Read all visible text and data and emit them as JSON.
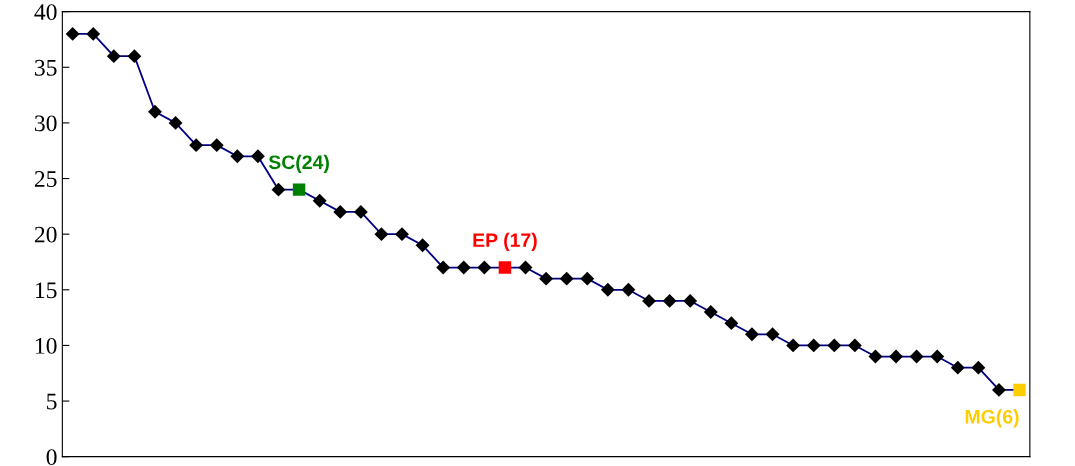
{
  "chart_data": {
    "type": "line",
    "categories": [
      null,
      null,
      null,
      null,
      null,
      null,
      null,
      null,
      null,
      null,
      null,
      null,
      null,
      null,
      null,
      null,
      null,
      null,
      null,
      null,
      null,
      null,
      null,
      null,
      null,
      null,
      null,
      null,
      null,
      null,
      null,
      null,
      null,
      null,
      null,
      null,
      null,
      null,
      null,
      null,
      null,
      null,
      null,
      null,
      null,
      null,
      null
    ],
    "series": [
      {
        "color": "#000080",
        "marker": "diamond",
        "values": [
          38,
          38,
          36,
          36,
          31,
          30,
          28,
          28,
          27,
          27,
          24,
          24,
          23,
          22,
          22,
          20,
          20,
          19,
          17,
          17,
          17,
          17,
          17,
          16,
          16,
          16,
          15,
          15,
          14,
          14,
          14,
          13,
          12,
          11,
          11,
          10,
          10,
          10,
          10,
          9,
          9,
          9,
          9,
          8,
          8,
          6,
          6
        ],
        "colors": [
          "#000000",
          "#000000",
          "#000000",
          "#000000",
          "#000000",
          "#000000",
          "#000000",
          "#000000",
          "#000000",
          "#000000",
          "#000000",
          "#008000",
          "#000000",
          "#000000",
          "#000000",
          "#000000",
          "#000000",
          "#000000",
          "#000000",
          "#000000",
          "#000000",
          "#ff0000",
          "#000000",
          "#000000",
          "#000000",
          "#000000",
          "#000000",
          "#000000",
          "#000000",
          "#000000",
          "#000000",
          "#000000",
          "#000000",
          "#000000",
          "#000000",
          "#000000",
          "#000000",
          "#000000",
          "#000000",
          "#000000",
          "#000000",
          "#000000",
          "#000000",
          "#000000",
          "#000000",
          "#000000",
          "#ffcc00"
        ],
        "value_labels": [
          null,
          null,
          null,
          null,
          null,
          null,
          null,
          null,
          null,
          null,
          null,
          "SC(24)",
          null,
          null,
          null,
          null,
          null,
          null,
          null,
          null,
          null,
          "EP (17)",
          null,
          null,
          null,
          null,
          null,
          null,
          null,
          null,
          null,
          null,
          null,
          null,
          null,
          null,
          null,
          null,
          null,
          null,
          null,
          null,
          null,
          null,
          null,
          null,
          "MG(6)"
        ]
      }
    ],
    "ylim": [
      0,
      40
    ],
    "yticks": [
      0,
      5,
      10,
      15,
      20,
      25,
      30,
      35,
      40
    ],
    "grid": false,
    "legend": false,
    "tick_labels": "y"
  }
}
